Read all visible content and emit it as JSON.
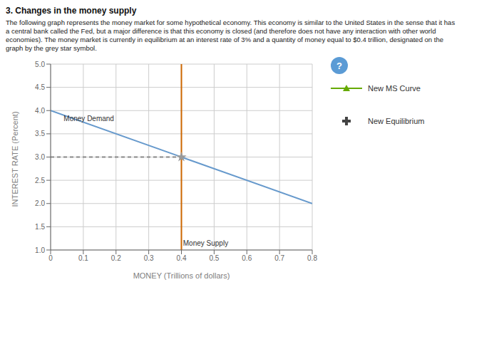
{
  "chart_data": {
    "type": "line",
    "title": "3. Changes in the money supply",
    "subtitle": [
      "The following graph represents the money market for some hypothetical economy. This economy is similar to the United States in the sense that it has",
      "a central bank called the Fed, but a major difference is that this economy is closed (and therefore does not have any interaction with other world",
      "economies). The money market is currently in equilibrium at an interest rate of 3% and a quantity of money equal to $0.4 trillion, designated on the",
      "graph by the grey star symbol."
    ],
    "xlabel": "MONEY (Trillions of dollars)",
    "ylabel": "INTEREST RATE (Percent)",
    "xlim": [
      0,
      0.8
    ],
    "ylim": [
      1.0,
      5.0
    ],
    "xticks": [
      0,
      0.1,
      0.2,
      0.3,
      0.4,
      0.5,
      0.6,
      0.7,
      0.8
    ],
    "yticks": [
      {
        "value": 1.0,
        "label": "1.0"
      },
      1.5,
      {
        "value": 2.0,
        "label": "2.0"
      },
      2.5,
      {
        "value": 3.0,
        "label": "3.0"
      },
      3.5,
      {
        "value": 4.0,
        "label": "4.0"
      },
      4.5,
      {
        "value": 5.0,
        "label": "5.0"
      }
    ],
    "grid": true,
    "legend": "right",
    "series": [
      {
        "type": "line",
        "color": "#6699cc",
        "x": [
          0,
          0.8
        ],
        "values": [
          4.0,
          2.0
        ]
      },
      {
        "type": "vline",
        "color": "#cc6600",
        "x": 0.4
      },
      {
        "type": "line",
        "color": "#888888",
        "line_style": "dashed",
        "x": [
          0,
          0.4
        ],
        "values": [
          3.0,
          3.0
        ]
      },
      {
        "type": "scatter",
        "color": "#999999",
        "marker": "star",
        "x": [
          0.4
        ],
        "values": [
          3.0
        ]
      },
      {
        "name": "New MS Curve",
        "type": "line",
        "color": "#66aa00",
        "marker": "triangle",
        "values": []
      },
      {
        "name": "New Equilibrium",
        "type": "scatter",
        "color": "#444444",
        "marker": "cross",
        "values": []
      }
    ],
    "annotations": [
      {
        "text": "Money Demand",
        "x": 0.04,
        "y": 3.93
      },
      {
        "text": "Money Supply",
        "x": 0.405,
        "y": 1.05
      },
      {
        "text": "?"
      }
    ]
  }
}
